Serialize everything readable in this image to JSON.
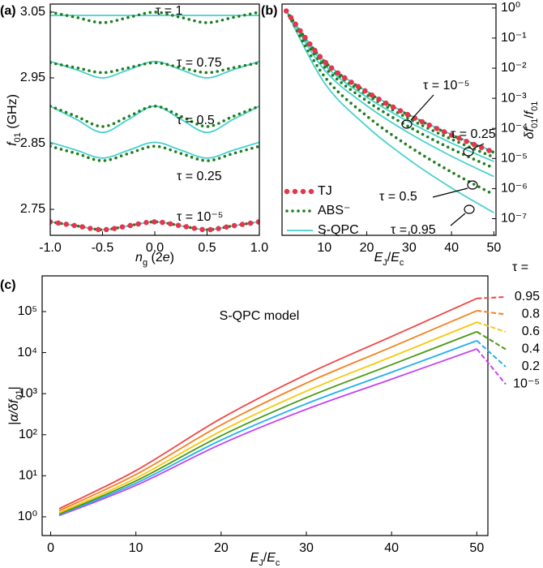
{
  "chart_data": [
    {
      "type": "line",
      "panel_label": "(a)",
      "x": [
        -1,
        -0.75,
        -0.5,
        -0.25,
        0,
        0.25,
        0.5,
        0.75,
        1
      ],
      "xlim": [
        -1,
        1
      ],
      "xticks": [
        {
          "value": -1,
          "label": "-1.0"
        },
        {
          "value": -0.5,
          "label": "-0.5"
        },
        {
          "value": 0,
          "label": "0.0"
        },
        {
          "value": 0.5,
          "label": "0.5"
        },
        {
          "value": 1,
          "label": "1.0"
        }
      ],
      "ylim": [
        2.7105,
        3.0623
      ],
      "yticks": [
        2.75,
        2.85,
        2.95,
        3.05
      ],
      "xlabel": [
        {
          "text": "n",
          "style": "italic"
        },
        {
          "text": "g",
          "style": "sub"
        },
        {
          "text": " (2",
          "style": "normal"
        },
        {
          "text": "e",
          "style": "italic"
        },
        {
          "text": ")",
          "style": "normal"
        }
      ],
      "ylabel": [
        {
          "text": "f",
          "style": "italic"
        },
        {
          "text": "01",
          "style": "sub"
        },
        {
          "text": " (GHz)",
          "style": "normal"
        }
      ],
      "series": [
        {
          "line": "dotted-thick",
          "color": "#e8334f",
          "curves": [
            {
              "values": [
                2.731,
                2.725,
                2.719,
                2.725,
                2.731,
                2.725,
                2.719,
                2.725,
                2.731
              ]
            }
          ]
        },
        {
          "line": "dotted",
          "color": "#1e7d1e",
          "curves": [
            {
              "values": [
                3.05,
                3.042,
                3.034,
                3.042,
                3.05,
                3.042,
                3.034,
                3.042,
                3.05
              ]
            },
            {
              "values": [
                2.973,
                2.9655,
                2.958,
                2.9655,
                2.973,
                2.9655,
                2.958,
                2.9655,
                2.973
              ]
            },
            {
              "values": [
                2.907,
                2.8915,
                2.876,
                2.8915,
                2.907,
                2.8915,
                2.876,
                2.8915,
                2.907
              ]
            },
            {
              "values": [
                2.846,
                2.835,
                2.824,
                2.835,
                2.846,
                2.835,
                2.824,
                2.835,
                2.846
              ]
            },
            {
              "values": [
                2.731,
                2.725,
                2.719,
                2.725,
                2.731,
                2.725,
                2.719,
                2.725,
                2.731
              ]
            }
          ]
        },
        {
          "line": "solid",
          "color": "#48d1cc",
          "curves": [
            {
              "values": [
                3.045,
                3.045,
                3.045,
                3.045,
                3.045,
                3.045,
                3.045,
                3.045,
                3.045
              ]
            },
            {
              "values": [
                2.975,
                2.9625,
                2.95,
                2.9625,
                2.975,
                2.9625,
                2.95,
                2.9625,
                2.975
              ]
            },
            {
              "values": [
                2.907,
                2.887,
                2.867,
                2.887,
                2.907,
                2.887,
                2.867,
                2.887,
                2.907
              ]
            },
            {
              "values": [
                2.852,
                2.84,
                2.828,
                2.84,
                2.852,
                2.84,
                2.828,
                2.84,
                2.852
              ]
            },
            {
              "values": [
                2.731,
                2.725,
                2.719,
                2.725,
                2.731,
                2.725,
                2.719,
                2.725,
                2.731
              ]
            }
          ]
        }
      ],
      "annotations": [
        "τ = 1",
        "τ = 0.75",
        "τ = 0.5",
        "τ = 0.25",
        "τ = 10⁻⁵"
      ]
    },
    {
      "type": "line",
      "panel_label": "(b)",
      "y_axis_side": "right",
      "yscale": "log",
      "legend": "lower left",
      "x": [
        1,
        10,
        20,
        30,
        40,
        50
      ],
      "xlim": [
        0,
        50.5
      ],
      "xticks": [
        10,
        20,
        30,
        40,
        50
      ],
      "ylim": [
        2.8e-08,
        1.35
      ],
      "yticks": [
        {
          "value": 1,
          "label": "10⁰"
        },
        {
          "value": 0.1,
          "label": "10⁻¹"
        },
        {
          "value": 0.01,
          "label": "10⁻²"
        },
        {
          "value": 0.001,
          "label": "10⁻³"
        },
        {
          "value": 0.0001,
          "label": "10⁻⁴"
        },
        {
          "value": 1e-05,
          "label": "10⁻⁵"
        },
        {
          "value": 1e-06,
          "label": "10⁻⁶"
        },
        {
          "value": 1e-07,
          "label": "10⁻⁷"
        }
      ],
      "xlabel": [
        {
          "text": "E",
          "style": "italic"
        },
        {
          "text": "J",
          "style": "sub"
        },
        {
          "text": "/",
          "style": "normal"
        },
        {
          "text": "E",
          "style": "italic"
        },
        {
          "text": "c",
          "style": "sub"
        }
      ],
      "ylabel": [
        {
          "text": "δf",
          "style": "italic"
        },
        {
          "text": "01",
          "style": "sub"
        },
        {
          "text": "/",
          "style": "normal"
        },
        {
          "text": "f",
          "style": "italic"
        },
        {
          "text": "01",
          "style": "sub"
        }
      ],
      "series": [
        {
          "name": "TJ",
          "line": "dotted-thick",
          "color": "#e8334f",
          "curves": [
            {
              "values": [
                0.794,
                0.0169,
                0.00163,
                0.000272,
                6e-05,
                1.59e-05
              ]
            }
          ]
        },
        {
          "name": "ABS⁻",
          "line": "dotted",
          "color": "#1e7d1e",
          "curves": [
            {
              "values": [
                0.794,
                0.0169,
                0.00163,
                0.000272,
                6e-05,
                1.59e-05
              ]
            },
            {
              "values": [
                0.794,
                0.0148,
                0.00132,
                0.000208,
                4.37e-05,
                1.1e-05
              ]
            },
            {
              "values": [
                0.794,
                0.011,
                0.00082,
                0.000112,
                2.09e-05,
                4.8e-06
              ]
            },
            {
              "values": [
                0.794,
                0.00533,
                0.000258,
                2.52e-05,
                3.53e-06,
                6.3e-07
              ]
            }
          ]
        },
        {
          "name": "S-QPC",
          "line": "solid",
          "color": "#48d1cc",
          "curves": [
            {
              "values": [
                0.794,
                0.0172,
                0.00169,
                0.000284,
                6.31e-05,
                1.68e-05
              ]
            },
            {
              "values": [
                0.794,
                0.0131,
                0.00109,
                0.000163,
                3.25e-05,
                7.9e-06
              ]
            },
            {
              "values": [
                0.794,
                0.00873,
                0.000568,
                6.98e-05,
                1.19e-05,
                2.51e-06
              ]
            },
            {
              "values": [
                0.794,
                0.00326,
                0.000117,
                9.06e-06,
                1.05e-06,
                1.58e-07
              ]
            }
          ]
        }
      ],
      "annotations": [
        "τ = 10⁻⁵",
        "τ = 0.25",
        "τ = 0.5",
        "τ = 0.95"
      ]
    },
    {
      "type": "line",
      "panel_label": "(c)",
      "yscale": "log",
      "title": "S-QPC model",
      "legend_title": "τ =",
      "legend": "right",
      "x": [
        1,
        10,
        20,
        30,
        40,
        50
      ],
      "xlim": [
        -1,
        51.3
      ],
      "xticks": [
        0,
        10,
        20,
        30,
        40,
        50
      ],
      "ylim": [
        0.35,
        740000
      ],
      "yticks": [
        {
          "value": 1,
          "label": "10⁰"
        },
        {
          "value": 10,
          "label": "10¹"
        },
        {
          "value": 100,
          "label": "10²"
        },
        {
          "value": 1000,
          "label": "10³"
        },
        {
          "value": 10000,
          "label": "10⁴"
        },
        {
          "value": 100000,
          "label": "10⁵"
        }
      ],
      "xlabel": [
        {
          "text": "E",
          "style": "italic"
        },
        {
          "text": "J",
          "style": "sub"
        },
        {
          "text": "/",
          "style": "normal"
        },
        {
          "text": "E",
          "style": "italic"
        },
        {
          "text": "c",
          "style": "sub"
        }
      ],
      "ylabel": [
        {
          "text": "|",
          "style": "normal"
        },
        {
          "text": "α/δf",
          "style": "italic"
        },
        {
          "text": "01",
          "style": "sub"
        },
        {
          "text": "|",
          "style": "normal"
        }
      ],
      "series": [
        {
          "name": "0.95",
          "line": "solid",
          "color": "#f04646",
          "curves": [
            {
              "values": [
                1.58,
                13.4,
                249,
                2930,
                24700,
                209000
              ]
            }
          ]
        },
        {
          "name": "0.8",
          "line": "solid",
          "color": "#f5821f",
          "curves": [
            {
              "values": [
                1.41,
                10.7,
                173,
                1810,
                13700,
                105000
              ]
            }
          ]
        },
        {
          "name": "0.6",
          "line": "solid",
          "color": "#f7c80a",
          "curves": [
            {
              "values": [
                1.26,
                8.71,
                123,
                1150,
                7940,
                55000
              ]
            }
          ]
        },
        {
          "name": "0.4",
          "line": "solid",
          "color": "#4a9a12",
          "curves": [
            {
              "values": [
                1.17,
                7.48,
                94.4,
                800,
                5080,
                32400
              ]
            }
          ]
        },
        {
          "name": "0.2",
          "line": "solid",
          "color": "#22b0f0",
          "curves": [
            {
              "values": [
                1.12,
                6.56,
                74.0,
                569,
                3330,
                19500
              ]
            }
          ]
        },
        {
          "name": "10⁻⁵",
          "line": "solid",
          "color": "#c444f0",
          "curves": [
            {
              "values": [
                1.07,
                5.82,
                59.2,
                417,
                2260,
                12300
              ]
            }
          ]
        }
      ]
    }
  ]
}
